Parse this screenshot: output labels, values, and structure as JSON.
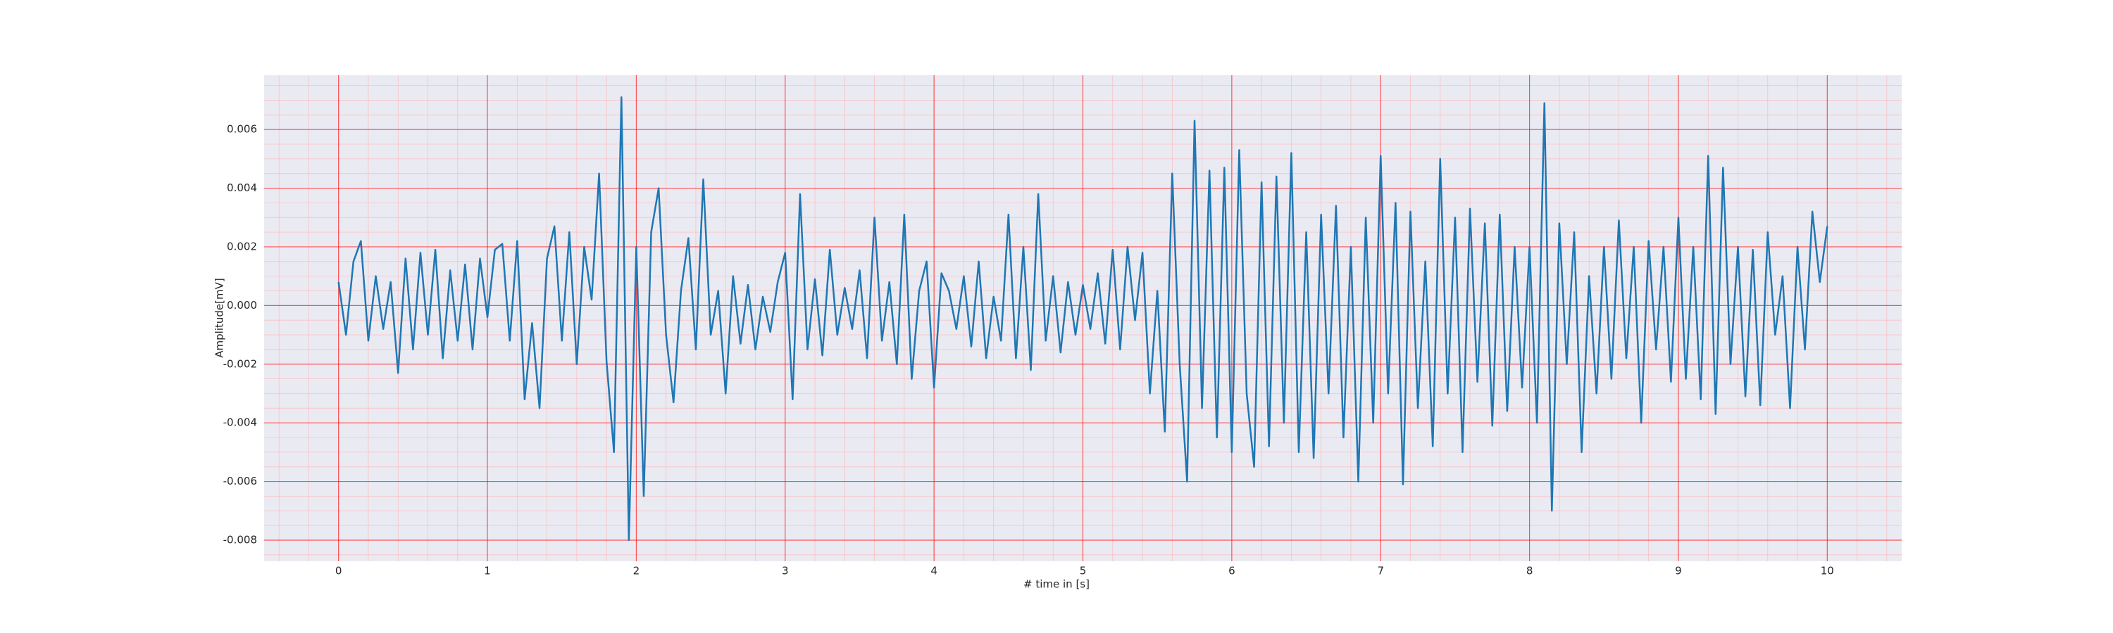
{
  "chart_data": {
    "type": "line",
    "xlabel": "# time in [s]",
    "ylabel": "Amplitude[mV]",
    "color": "#1f77b4",
    "grid": true,
    "minor_grid": true,
    "xlim": [
      -0.5,
      10.5
    ],
    "ylim": [
      -0.00872,
      0.00785
    ],
    "xticks": [
      0,
      1,
      2,
      3,
      4,
      5,
      6,
      7,
      8,
      9,
      10
    ],
    "yticks": [
      -0.008,
      -0.006,
      -0.004,
      -0.002,
      {
        "value": 0,
        "label": "0.000"
      },
      0.002,
      0.004,
      0.006
    ],
    "x": [
      0,
      0.05,
      0.1,
      0.15,
      0.2,
      0.25,
      0.3,
      0.35,
      0.4,
      0.45,
      0.5,
      0.55,
      0.6,
      0.65,
      0.7,
      0.75,
      0.8,
      0.85,
      0.9,
      0.95,
      1,
      1.05,
      1.1,
      1.15,
      1.2,
      1.25,
      1.3,
      1.35,
      1.4,
      1.45,
      1.5,
      1.55,
      1.6,
      1.65,
      1.7,
      1.75,
      1.8,
      1.85,
      1.9,
      1.95,
      2,
      2.05,
      2.1,
      2.15,
      2.2,
      2.25,
      2.3,
      2.35,
      2.4,
      2.45,
      2.5,
      2.55,
      2.6,
      2.65,
      2.7,
      2.75,
      2.8,
      2.85,
      2.9,
      2.95,
      3,
      3.05,
      3.1,
      3.15,
      3.2,
      3.25,
      3.3,
      3.35,
      3.4,
      3.45,
      3.5,
      3.55,
      3.6,
      3.65,
      3.7,
      3.75,
      3.8,
      3.85,
      3.9,
      3.95,
      4,
      4.05,
      4.1,
      4.15,
      4.2,
      4.25,
      4.3,
      4.35,
      4.4,
      4.45,
      4.5,
      4.55,
      4.6,
      4.65,
      4.7,
      4.75,
      4.8,
      4.85,
      4.9,
      4.95,
      5,
      5.05,
      5.1,
      5.15,
      5.2,
      5.25,
      5.3,
      5.35,
      5.4,
      5.45,
      5.5,
      5.55,
      5.6,
      5.65,
      5.7,
      5.75,
      5.8,
      5.85,
      5.9,
      5.95,
      6,
      6.05,
      6.1,
      6.15,
      6.2,
      6.25,
      6.3,
      6.35,
      6.4,
      6.45,
      6.5,
      6.55,
      6.6,
      6.65,
      6.7,
      6.75,
      6.8,
      6.85,
      6.9,
      6.95,
      7,
      7.05,
      7.1,
      7.15,
      7.2,
      7.25,
      7.3,
      7.35,
      7.4,
      7.45,
      7.5,
      7.55,
      7.6,
      7.65,
      7.7,
      7.75,
      7.8,
      7.85,
      7.9,
      7.95,
      8,
      8.05,
      8.1,
      8.15,
      8.2,
      8.25,
      8.3,
      8.35,
      8.4,
      8.45,
      8.5,
      8.55,
      8.6,
      8.65,
      8.7,
      8.75,
      8.8,
      8.85,
      8.9,
      8.95,
      9,
      9.05,
      9.1,
      9.15,
      9.2,
      9.25,
      9.3,
      9.35,
      9.4,
      9.45,
      9.5,
      9.55,
      9.6,
      9.65,
      9.7,
      9.75,
      9.8,
      9.85,
      9.9,
      9.95,
      10
    ],
    "values": [
      0.0008,
      -0.001,
      0.0015,
      0.0022,
      -0.0012,
      0.001,
      -0.0008,
      0.0008,
      -0.0023,
      0.0016,
      -0.0015,
      0.0018,
      -0.001,
      0.0019,
      -0.0018,
      0.0012,
      -0.0012,
      0.0014,
      -0.0015,
      0.0016,
      -0.0004,
      0.0019,
      0.0021,
      -0.0012,
      0.0022,
      -0.0032,
      -0.0006,
      -0.0035,
      0.0016,
      0.0027,
      -0.0012,
      0.0025,
      -0.002,
      0.002,
      0.0002,
      0.0045,
      -0.0019,
      -0.005,
      0.0071,
      -0.008,
      0.002,
      -0.0065,
      0.0025,
      0.004,
      -0.001,
      -0.0033,
      0.0005,
      0.0023,
      -0.0015,
      0.0043,
      -0.001,
      0.0005,
      -0.003,
      0.001,
      -0.0013,
      0.0007,
      -0.0015,
      0.0003,
      -0.0009,
      0.0008,
      0.0018,
      -0.0032,
      0.0038,
      -0.0015,
      0.0009,
      -0.0017,
      0.0019,
      -0.001,
      0.0006,
      -0.0008,
      0.0012,
      -0.0018,
      0.003,
      -0.0012,
      0.0008,
      -0.002,
      0.0031,
      -0.0025,
      0.0005,
      0.0015,
      -0.0028,
      0.0011,
      0.0005,
      -0.0008,
      0.001,
      -0.0014,
      0.0015,
      -0.0018,
      0.0003,
      -0.0012,
      0.0031,
      -0.0018,
      0.002,
      -0.0022,
      0.0038,
      -0.0012,
      0.001,
      -0.0016,
      0.0008,
      -0.001,
      0.0007,
      -0.0008,
      0.0011,
      -0.0013,
      0.0019,
      -0.0015,
      0.002,
      -0.0005,
      0.0018,
      -0.003,
      0.0005,
      -0.0043,
      0.0045,
      -0.002,
      -0.006,
      0.0063,
      -0.0035,
      0.0046,
      -0.0045,
      0.0047,
      -0.005,
      0.0053,
      -0.003,
      -0.0055,
      0.0042,
      -0.0048,
      0.0044,
      -0.004,
      0.0052,
      -0.005,
      0.0025,
      -0.0052,
      0.0031,
      -0.003,
      0.0034,
      -0.0045,
      0.002,
      -0.006,
      0.003,
      -0.004,
      0.0051,
      -0.003,
      0.0035,
      -0.0061,
      0.0032,
      -0.0035,
      0.0015,
      -0.0048,
      0.005,
      -0.003,
      0.003,
      -0.005,
      0.0033,
      -0.0026,
      0.0028,
      -0.0041,
      0.0031,
      -0.0036,
      0.002,
      -0.0028,
      0.002,
      -0.004,
      0.0069,
      -0.007,
      0.0028,
      -0.002,
      0.0025,
      -0.005,
      0.001,
      -0.003,
      0.002,
      -0.0025,
      0.0029,
      -0.0018,
      0.002,
      -0.004,
      0.0022,
      -0.0015,
      0.002,
      -0.0026,
      0.003,
      -0.0025,
      0.002,
      -0.0032,
      0.0051,
      -0.0037,
      0.0047,
      -0.002,
      0.002,
      -0.0031,
      0.0019,
      -0.0034,
      0.0025,
      -0.001,
      0.001,
      -0.0035,
      0.002,
      -0.0015,
      0.0032,
      0.0008,
      0.0027
    ]
  }
}
